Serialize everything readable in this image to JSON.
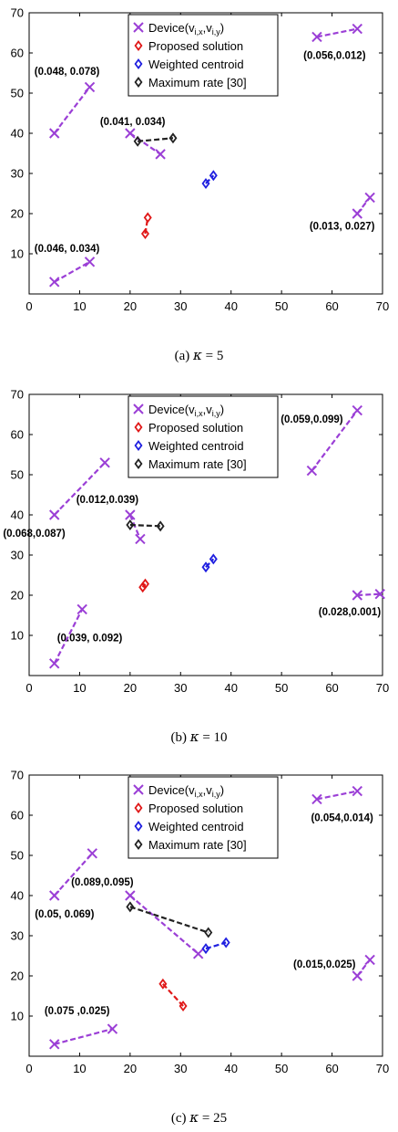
{
  "colors": {
    "device": "#9b3fd6",
    "proposed": "#e01818",
    "centroid": "#1f1fe0",
    "maxrate": "#222222"
  },
  "chart_data": [
    {
      "type": "scatter",
      "caption_prefix": "(a)",
      "caption_kappa": "5",
      "xlim": [
        0,
        70
      ],
      "ylim": [
        0,
        70
      ],
      "xticks": [
        "0",
        "10",
        "20",
        "30",
        "40",
        "50",
        "60",
        "70"
      ],
      "yticks": [
        "10",
        "20",
        "30",
        "40",
        "50",
        "60",
        "70"
      ],
      "legend": {
        "placement": "top-center",
        "entries": [
          {
            "key": "device",
            "label": "Device(v",
            "sub": "i,x",
            "mid": ",v",
            "sub2": "i,y",
            "end": ")"
          },
          {
            "key": "proposed",
            "label": "Proposed solution"
          },
          {
            "key": "centroid",
            "label": "Weighted centroid"
          },
          {
            "key": "maxrate",
            "label": "Maximum rate [30]"
          }
        ]
      },
      "devices": [
        {
          "start": [
            5,
            40
          ],
          "end": [
            12,
            51.5
          ],
          "label": "(0.048, 0.078)",
          "lx": 7.5,
          "ly": 54.5,
          "anchor": "middle"
        },
        {
          "start": [
            5,
            3
          ],
          "end": [
            12,
            8
          ],
          "label": "(0.046, 0.034)",
          "lx": 7.5,
          "ly": 10.5,
          "anchor": "middle"
        },
        {
          "start": [
            20,
            40
          ],
          "end": [
            26,
            34.8
          ],
          "label": "(0.041, 0.034)",
          "lx": 20.5,
          "ly": 42,
          "anchor": "middle"
        },
        {
          "start": [
            57,
            64
          ],
          "end": [
            65,
            66
          ],
          "label": "(0.056,0.012)",
          "lx": 60.5,
          "ly": 58.5,
          "anchor": "middle"
        },
        {
          "start": [
            65,
            20
          ],
          "end": [
            67.5,
            24
          ],
          "label": "(0.013, 0.027)",
          "lx": 62,
          "ly": 16,
          "anchor": "middle"
        }
      ],
      "proposed": [
        [
          23,
          15
        ],
        [
          23.5,
          19
        ]
      ],
      "centroid": [
        [
          35,
          27.5
        ],
        [
          36.5,
          29.5
        ]
      ],
      "maxrate": [
        [
          21.5,
          38
        ],
        [
          28.5,
          38.8
        ]
      ]
    },
    {
      "type": "scatter",
      "caption_prefix": "(b)",
      "caption_kappa": "10",
      "xlim": [
        0,
        70
      ],
      "ylim": [
        0,
        70
      ],
      "xticks": [
        "0",
        "10",
        "20",
        "30",
        "40",
        "50",
        "60",
        "70"
      ],
      "yticks": [
        "10",
        "20",
        "30",
        "40",
        "50",
        "60",
        "70"
      ],
      "legend": {
        "placement": "top-center",
        "entries": [
          {
            "key": "device",
            "label": "Device(v",
            "sub": "i,x",
            "mid": ",v",
            "sub2": "i,y",
            "end": ")"
          },
          {
            "key": "proposed",
            "label": "Proposed solution"
          },
          {
            "key": "centroid",
            "label": "Weighted centroid"
          },
          {
            "key": "maxrate",
            "label": "Maximum rate [30]"
          }
        ]
      },
      "devices": [
        {
          "start": [
            5,
            40
          ],
          "end": [
            15,
            53
          ],
          "label": "(0.068,0.087)",
          "lx": 1,
          "ly": 34.5,
          "anchor": "middle"
        },
        {
          "start": [
            5,
            3
          ],
          "end": [
            10.5,
            16.5
          ],
          "label": "(0.039, 0.092)",
          "lx": 12,
          "ly": 8.5,
          "anchor": "middle"
        },
        {
          "start": [
            20,
            40
          ],
          "end": [
            22,
            34
          ],
          "label": "(0.012,0.039)",
          "lx": 15.5,
          "ly": 43,
          "anchor": "middle"
        },
        {
          "start": [
            56,
            51
          ],
          "end": [
            65,
            66
          ],
          "label": "(0.059,0.099)",
          "lx": 56,
          "ly": 63,
          "anchor": "middle"
        },
        {
          "start": [
            65,
            20
          ],
          "end": [
            69.5,
            20.3
          ],
          "label": "(0.028,0.001)",
          "lx": 63.5,
          "ly": 15,
          "anchor": "middle"
        }
      ],
      "proposed": [
        [
          22.5,
          22
        ],
        [
          23,
          22.8
        ]
      ],
      "centroid": [
        [
          35,
          27
        ],
        [
          36.5,
          29
        ]
      ],
      "maxrate": [
        [
          20,
          37.5
        ],
        [
          26,
          37.2
        ]
      ]
    },
    {
      "type": "scatter",
      "caption_prefix": "(c)",
      "caption_kappa": "25",
      "xlim": [
        0,
        70
      ],
      "ylim": [
        0,
        70
      ],
      "xticks": [
        "0",
        "10",
        "20",
        "30",
        "40",
        "50",
        "60",
        "70"
      ],
      "yticks": [
        "10",
        "20",
        "30",
        "40",
        "50",
        "60",
        "70"
      ],
      "legend": {
        "placement": "top-center",
        "entries": [
          {
            "key": "device",
            "label": "Device(v",
            "sub": "i,x",
            "mid": ",v",
            "sub2": "i,y",
            "end": ")"
          },
          {
            "key": "proposed",
            "label": "Proposed solution"
          },
          {
            "key": "centroid",
            "label": "Weighted centroid"
          },
          {
            "key": "maxrate",
            "label": "Maximum rate [30]"
          }
        ]
      },
      "devices": [
        {
          "start": [
            5,
            40
          ],
          "end": [
            12.5,
            50.5
          ],
          "label": "(0.05, 0.069)",
          "lx": 7,
          "ly": 34.5,
          "anchor": "middle"
        },
        {
          "start": [
            5,
            3
          ],
          "end": [
            16.5,
            6.8
          ],
          "label": "(0.075 ,0.025)",
          "lx": 9.5,
          "ly": 10.5,
          "anchor": "middle"
        },
        {
          "start": [
            20,
            40
          ],
          "end": [
            33.5,
            25.5
          ],
          "label": "(0.089,0.095)",
          "lx": 14.5,
          "ly": 42.5,
          "anchor": "middle"
        },
        {
          "start": [
            57,
            64
          ],
          "end": [
            65,
            66
          ],
          "label": "(0.054,0.014)",
          "lx": 62,
          "ly": 58.5,
          "anchor": "middle"
        },
        {
          "start": [
            65,
            20
          ],
          "end": [
            67.5,
            24
          ],
          "label": "(0.015,0.025)",
          "lx": 58.5,
          "ly": 22,
          "anchor": "middle"
        }
      ],
      "proposed": [
        [
          26.5,
          18
        ],
        [
          30.5,
          12.5
        ]
      ],
      "centroid": [
        [
          35,
          26.8
        ],
        [
          39,
          28.3
        ]
      ],
      "maxrate": [
        [
          20,
          37.2
        ],
        [
          35.5,
          30.8
        ]
      ]
    }
  ]
}
